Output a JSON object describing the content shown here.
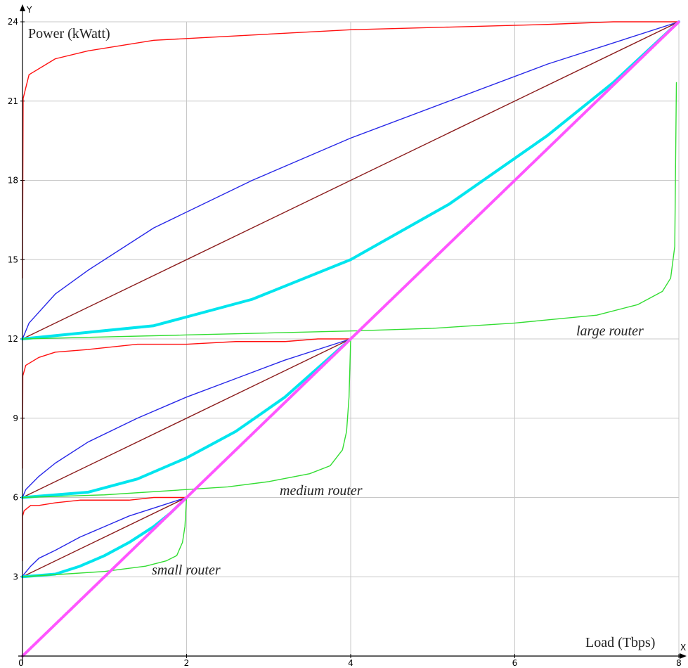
{
  "chart_data": {
    "type": "line",
    "x_label": "Load (Tbps)",
    "y_label": "Power (kWatt)",
    "x_axis_symbol": "X",
    "y_axis_symbol": "Y",
    "annotations": [
      "large router",
      "medium router",
      "small router"
    ],
    "xlim": [
      0,
      8
    ],
    "ylim": [
      0,
      24
    ],
    "xticks": [
      0,
      2,
      4,
      6,
      8
    ],
    "yticks": [
      3,
      6,
      9,
      12,
      15,
      18,
      21,
      24
    ],
    "grid": true,
    "series": [
      {
        "color": "#ff1010",
        "x": [
          0,
          0.008,
          0.08,
          0.4,
          0.8,
          1.6,
          2.8,
          4,
          5.2,
          6.4,
          7.2,
          8
        ],
        "values": [
          14.3,
          21.1,
          22.0,
          22.6,
          22.9,
          23.3,
          23.5,
          23.7,
          23.8,
          23.9,
          24.0,
          24
        ]
      },
      {
        "color": "#ff1010",
        "x": [
          0,
          0.004,
          0.04,
          0.2,
          0.4,
          0.8,
          1.4,
          2,
          2.6,
          3.2,
          3.6,
          4
        ],
        "values": [
          7.1,
          10.6,
          11.0,
          11.3,
          11.5,
          11.6,
          11.8,
          11.8,
          11.9,
          11.9,
          12.0,
          12
        ]
      },
      {
        "color": "#ff1010",
        "x": [
          0,
          0.002,
          0.02,
          0.1,
          0.2,
          0.4,
          0.7,
          1,
          1.3,
          1.6,
          1.8,
          2
        ],
        "values": [
          3.6,
          5.3,
          5.5,
          5.7,
          5.7,
          5.8,
          5.9,
          5.9,
          5.9,
          6.0,
          6.0,
          6
        ]
      },
      {
        "color": "#2828e8",
        "x": [
          0,
          0.08,
          0.4,
          0.8,
          1.6,
          2.8,
          4,
          5.2,
          6.4,
          8
        ],
        "values": [
          12,
          12.6,
          13.7,
          14.6,
          16.2,
          18.0,
          19.6,
          21.0,
          22.4,
          24
        ]
      },
      {
        "color": "#2828e8",
        "x": [
          0,
          0.04,
          0.2,
          0.4,
          0.8,
          1.4,
          2,
          2.6,
          3.2,
          4
        ],
        "values": [
          6,
          6.3,
          6.8,
          7.3,
          8.1,
          9.0,
          9.8,
          10.5,
          11.2,
          12
        ]
      },
      {
        "color": "#2828e8",
        "x": [
          0,
          0.02,
          0.1,
          0.2,
          0.4,
          0.7,
          1,
          1.3,
          1.6,
          2
        ],
        "values": [
          3,
          3.1,
          3.4,
          3.7,
          4.0,
          4.5,
          4.9,
          5.3,
          5.6,
          6
        ]
      },
      {
        "color": "#8b1c1c",
        "x": [
          0,
          8
        ],
        "values": [
          12,
          24
        ]
      },
      {
        "color": "#8b1c1c",
        "x": [
          0,
          4
        ],
        "values": [
          6,
          12
        ]
      },
      {
        "color": "#8b1c1c",
        "x": [
          0,
          2
        ],
        "values": [
          3,
          6
        ]
      },
      {
        "color": "#00e5ee",
        "x": [
          0,
          1.6,
          2.8,
          4,
          5.2,
          6.4,
          7.2,
          8
        ],
        "values": [
          12,
          12.5,
          13.5,
          15,
          17.1,
          19.7,
          21.7,
          24
        ]
      },
      {
        "color": "#00e5ee",
        "x": [
          0,
          0.8,
          1.4,
          2,
          2.6,
          3.2,
          3.6,
          4
        ],
        "values": [
          6,
          6.2,
          6.7,
          7.5,
          8.5,
          9.8,
          10.9,
          12
        ]
      },
      {
        "color": "#00e5ee",
        "x": [
          0,
          0.4,
          0.7,
          1,
          1.3,
          1.6,
          1.8,
          2
        ],
        "values": [
          3,
          3.1,
          3.4,
          3.8,
          4.3,
          4.9,
          5.4,
          6
        ]
      },
      {
        "color": "#33dd33",
        "x": [
          0,
          2,
          4,
          5,
          6,
          7,
          7.5,
          7.8,
          7.9,
          7.95,
          7.97
        ],
        "values": [
          12,
          12.15,
          12.3,
          12.4,
          12.6,
          12.9,
          13.3,
          13.8,
          14.3,
          15.5,
          21.7
        ]
      },
      {
        "color": "#33dd33",
        "x": [
          0,
          1,
          2,
          2.5,
          3,
          3.5,
          3.75,
          3.9,
          3.95,
          3.98,
          4
        ],
        "values": [
          6,
          6.1,
          6.3,
          6.4,
          6.6,
          6.9,
          7.2,
          7.8,
          8.5,
          9.8,
          12
        ]
      },
      {
        "color": "#33dd33",
        "x": [
          0,
          0.5,
          1,
          1.25,
          1.5,
          1.75,
          1.88,
          1.95,
          1.98,
          2
        ],
        "values": [
          3,
          3.1,
          3.2,
          3.3,
          3.4,
          3.6,
          3.8,
          4.3,
          4.9,
          6
        ]
      },
      {
        "color": "#ff55ff",
        "x": [
          0,
          8
        ],
        "values": [
          0,
          24
        ]
      }
    ]
  }
}
